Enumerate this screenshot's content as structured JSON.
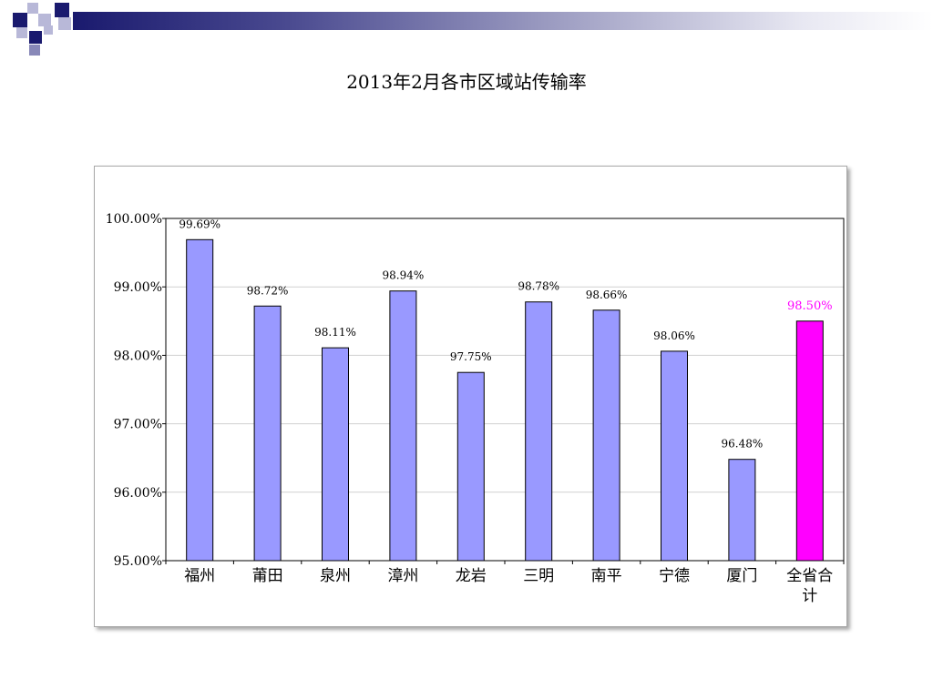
{
  "chart_data": {
    "type": "bar",
    "title": "2013年2月各市区域站传输率",
    "categories": [
      "福州",
      "莆田",
      "泉州",
      "漳州",
      "龙岩",
      "三明",
      "南平",
      "宁德",
      "厦门",
      "全省合计"
    ],
    "category_lines": [
      [
        "福州"
      ],
      [
        "莆田"
      ],
      [
        "泉州"
      ],
      [
        "漳州"
      ],
      [
        "龙岩"
      ],
      [
        "三明"
      ],
      [
        "南平"
      ],
      [
        "宁德"
      ],
      [
        "厦门"
      ],
      [
        "全省合",
        "计"
      ]
    ],
    "values": [
      99.69,
      98.72,
      98.11,
      98.94,
      97.75,
      98.78,
      98.66,
      98.06,
      96.48,
      98.5
    ],
    "value_labels": [
      "99.69%",
      "98.72%",
      "98.11%",
      "98.94%",
      "97.75%",
      "98.78%",
      "98.66%",
      "98.06%",
      "96.48%",
      "98.50%"
    ],
    "ylim": [
      95,
      100
    ],
    "yticks": [
      95,
      96,
      97,
      98,
      99,
      100
    ],
    "ytick_labels": [
      "95.00%",
      "96.00%",
      "97.00%",
      "98.00%",
      "99.00%",
      "100.00%"
    ],
    "xlabel": "",
    "ylabel": "",
    "grid": true,
    "legend": "none",
    "bar_color": "#9999ff",
    "highlight_color": "#ff00ff",
    "highlight_index": 9
  }
}
